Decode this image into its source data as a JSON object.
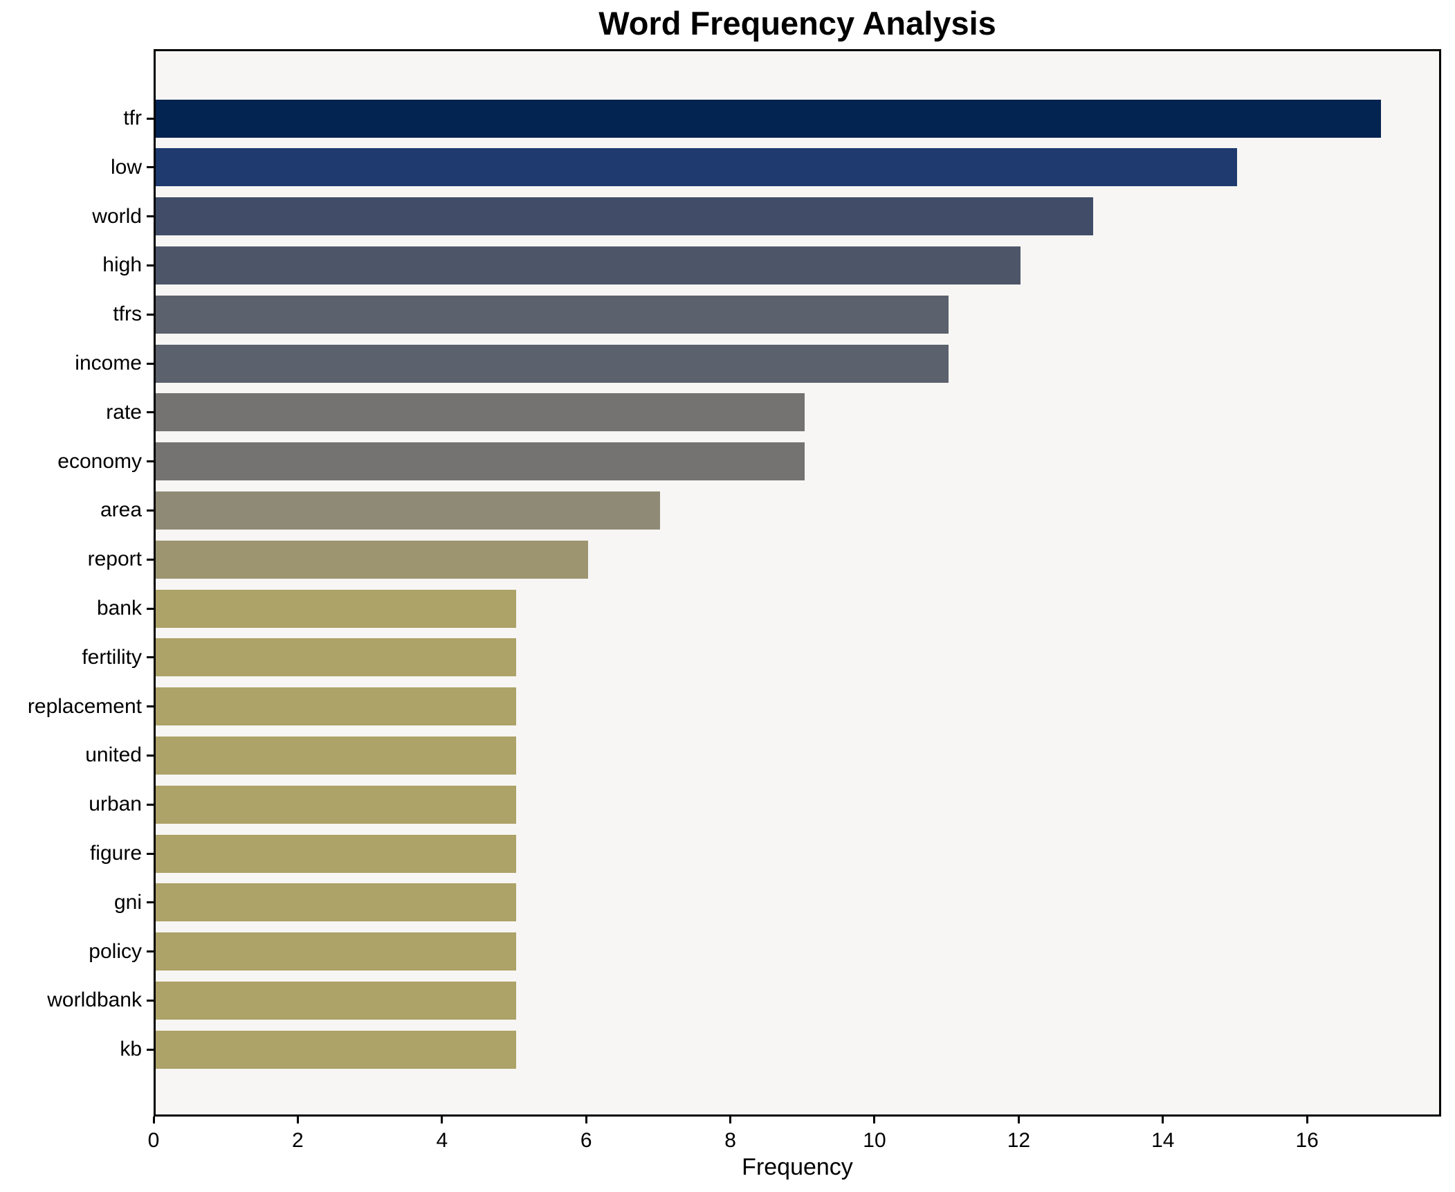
{
  "chart_data": {
    "type": "bar",
    "orientation": "horizontal",
    "title": "Word Frequency Analysis",
    "xlabel": "Frequency",
    "ylabel": "",
    "categories": [
      "tfr",
      "low",
      "world",
      "high",
      "tfrs",
      "income",
      "rate",
      "economy",
      "area",
      "report",
      "bank",
      "fertility",
      "replacement",
      "united",
      "urban",
      "figure",
      "gni",
      "policy",
      "worldbank",
      "kb"
    ],
    "values": [
      17,
      15,
      13,
      12,
      11,
      11,
      9,
      9,
      7,
      6,
      5,
      5,
      5,
      5,
      5,
      5,
      5,
      5,
      5,
      5
    ],
    "bar_colors": [
      "#032350",
      "#1e3a6e",
      "#414d68",
      "#4d5669",
      "#5b616d",
      "#5b616d",
      "#757372",
      "#757372",
      "#8f8a75",
      "#9d9570",
      "#ada267",
      "#ada267",
      "#ada267",
      "#ada267",
      "#ada267",
      "#ada267",
      "#ada267",
      "#ada267",
      "#ada267",
      "#ada267"
    ],
    "xlim": [
      0,
      17.86
    ],
    "x_ticks": [
      0,
      2,
      4,
      6,
      8,
      10,
      12,
      14,
      16
    ],
    "grid": false,
    "legend": null,
    "colors": {
      "plot_background": "#f7f6f4",
      "figure_background": "#ffffff",
      "spine": "#000000",
      "text": "#000000",
      "colormap_note": "cividis-like, darkest navy for highest frequency to khaki for lowest"
    }
  }
}
